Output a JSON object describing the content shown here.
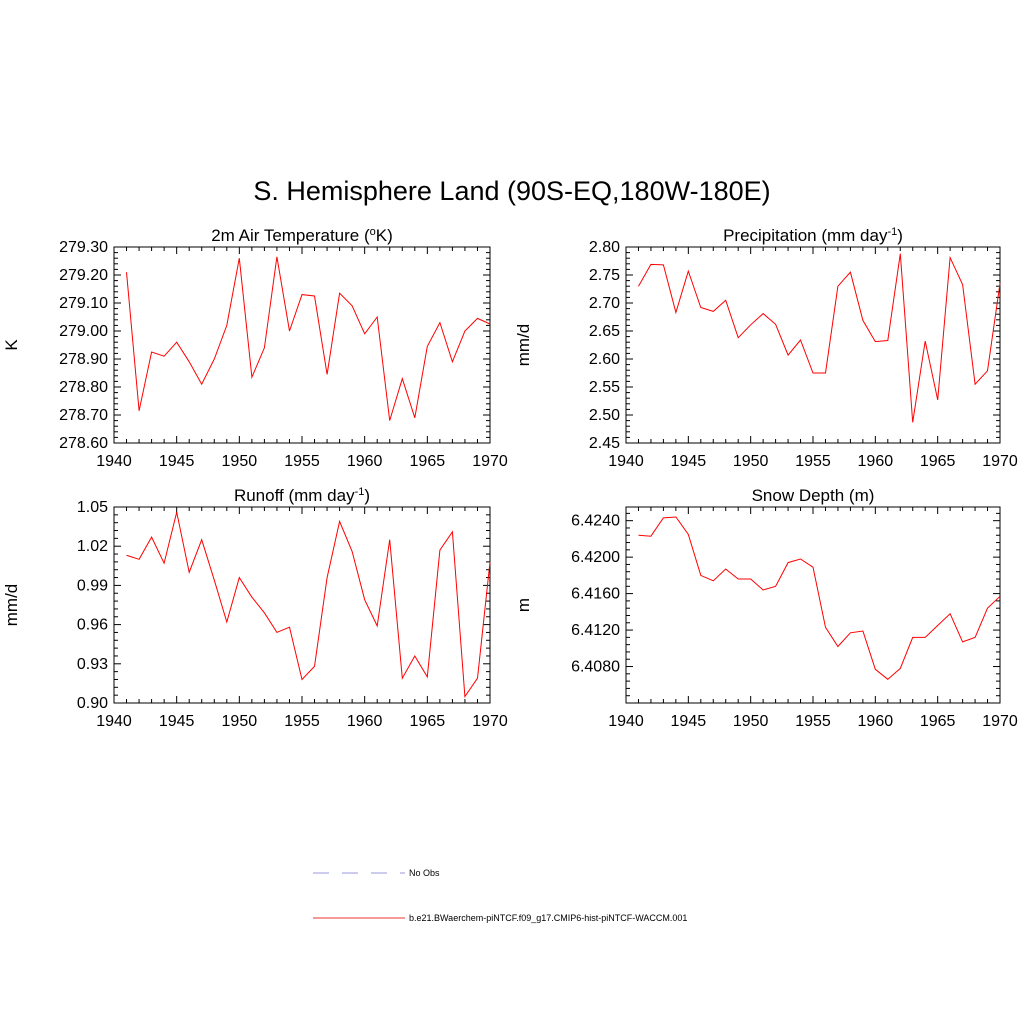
{
  "figure": {
    "title": "S. Hemisphere Land (90S-EQ,180W-180E)"
  },
  "chart_data": [
    {
      "type": "line",
      "title": "2m Air Temperature (",
      "title_sup": "o",
      "title_post": "K)",
      "xlabel": "",
      "ylabel": "K",
      "xlim": [
        1940,
        1970
      ],
      "ylim": [
        278.6,
        279.3
      ],
      "xticks": [
        1940,
        1945,
        1950,
        1955,
        1960,
        1965,
        1970
      ],
      "yticks": [
        278.6,
        278.7,
        278.8,
        278.9,
        279.0,
        279.1,
        279.2,
        279.3
      ],
      "ytick_decimals": 2,
      "series": [
        {
          "x": [
            1941,
            1942,
            1943,
            1944,
            1945,
            1946,
            1947,
            1948,
            1949,
            1950,
            1951,
            1952,
            1953,
            1954,
            1955,
            1956,
            1957,
            1958,
            1959,
            1960,
            1961,
            1962,
            1963,
            1964,
            1965,
            1966,
            1967,
            1968,
            1969,
            1970
          ],
          "values": [
            279.21,
            278.715,
            278.925,
            278.91,
            278.96,
            278.89,
            278.81,
            278.9,
            279.02,
            279.26,
            278.835,
            278.94,
            279.265,
            279.0,
            279.13,
            279.125,
            278.845,
            279.135,
            279.09,
            278.99,
            279.05,
            278.68,
            278.83,
            278.69,
            278.945,
            279.03,
            278.89,
            279.0,
            279.045,
            279.025
          ]
        }
      ]
    },
    {
      "type": "line",
      "title": "Precipitation (mm day",
      "title_sup": "-1",
      "title_post": ")",
      "xlabel": "",
      "ylabel": "mm/d",
      "xlim": [
        1940,
        1970
      ],
      "ylim": [
        2.45,
        2.8
      ],
      "xticks": [
        1940,
        1945,
        1950,
        1955,
        1960,
        1965,
        1970
      ],
      "yticks": [
        2.45,
        2.5,
        2.55,
        2.6,
        2.65,
        2.7,
        2.75,
        2.8
      ],
      "ytick_decimals": 2,
      "series": [
        {
          "x": [
            1941,
            1942,
            1943,
            1944,
            1945,
            1946,
            1947,
            1948,
            1949,
            1950,
            1951,
            1952,
            1953,
            1954,
            1955,
            1956,
            1957,
            1958,
            1959,
            1960,
            1961,
            1962,
            1963,
            1964,
            1965,
            1966,
            1967,
            1968,
            1969,
            1970
          ],
          "values": [
            2.73,
            2.769,
            2.768,
            2.683,
            2.757,
            2.692,
            2.685,
            2.705,
            2.638,
            2.661,
            2.681,
            2.662,
            2.607,
            2.634,
            2.575,
            2.575,
            2.73,
            2.755,
            2.669,
            2.631,
            2.633,
            2.788,
            2.487,
            2.632,
            2.527,
            2.781,
            2.733,
            2.555,
            2.579,
            2.735
          ]
        }
      ]
    },
    {
      "type": "line",
      "title": "Runoff (mm day",
      "title_sup": "-1",
      "title_post": ")",
      "xlabel": "",
      "ylabel": "mm/d",
      "xlim": [
        1940,
        1970
      ],
      "ylim": [
        0.9,
        1.05
      ],
      "xticks": [
        1940,
        1945,
        1950,
        1955,
        1960,
        1965,
        1970
      ],
      "yticks": [
        0.9,
        0.93,
        0.96,
        0.99,
        1.02,
        1.05
      ],
      "ytick_decimals": 2,
      "series": [
        {
          "x": [
            1941,
            1942,
            1943,
            1944,
            1945,
            1946,
            1947,
            1948,
            1949,
            1950,
            1951,
            1952,
            1953,
            1954,
            1955,
            1956,
            1957,
            1958,
            1959,
            1960,
            1961,
            1962,
            1963,
            1964,
            1965,
            1966,
            1967,
            1968,
            1969,
            1970
          ],
          "values": [
            1.013,
            1.01,
            1.027,
            1.007,
            1.046,
            1.0,
            1.025,
            0.994,
            0.962,
            0.996,
            0.981,
            0.969,
            0.954,
            0.958,
            0.918,
            0.928,
            0.996,
            1.039,
            1.016,
            0.979,
            0.959,
            1.025,
            0.919,
            0.936,
            0.92,
            1.017,
            1.031,
            0.905,
            0.919,
            1.008
          ]
        }
      ]
    },
    {
      "type": "line",
      "title": "Snow Depth (m)",
      "title_sup": "",
      "title_post": "",
      "xlabel": "",
      "ylabel": "m",
      "xlim": [
        1940,
        1970
      ],
      "ylim": [
        6.404,
        6.4255
      ],
      "xticks": [
        1940,
        1945,
        1950,
        1955,
        1960,
        1965,
        1970
      ],
      "yticks": [
        6.408,
        6.412,
        6.416,
        6.42,
        6.424
      ],
      "ytick_decimals": 4,
      "series": [
        {
          "x": [
            1941,
            1942,
            1943,
            1944,
            1945,
            1946,
            1947,
            1948,
            1949,
            1950,
            1951,
            1952,
            1953,
            1954,
            1955,
            1956,
            1957,
            1958,
            1959,
            1960,
            1961,
            1962,
            1963,
            1964,
            1965,
            1966,
            1967,
            1968,
            1969,
            1970
          ],
          "values": [
            6.4224,
            6.4223,
            6.4243,
            6.4244,
            6.4225,
            6.418,
            6.4174,
            6.4187,
            6.4176,
            6.4176,
            6.4164,
            6.4168,
            6.4194,
            6.4198,
            6.4189,
            6.4123,
            6.4102,
            6.4117,
            6.4119,
            6.4077,
            6.4066,
            6.4078,
            6.4112,
            6.4112,
            6.4125,
            6.4138,
            6.4107,
            6.4112,
            6.4144,
            6.4157
          ]
        }
      ]
    }
  ],
  "legend": {
    "items": [
      {
        "label": "No Obs",
        "color": "#9999dd",
        "style": "dashed"
      },
      {
        "label": "b.e21.BWaerchem-piNTCF.f09_g17.CMIP6-hist-piNTCF-WACCM.001",
        "color": "#ee3333",
        "style": "solid"
      }
    ]
  },
  "colors": {
    "series": "#ff0000",
    "axis": "#000000"
  }
}
